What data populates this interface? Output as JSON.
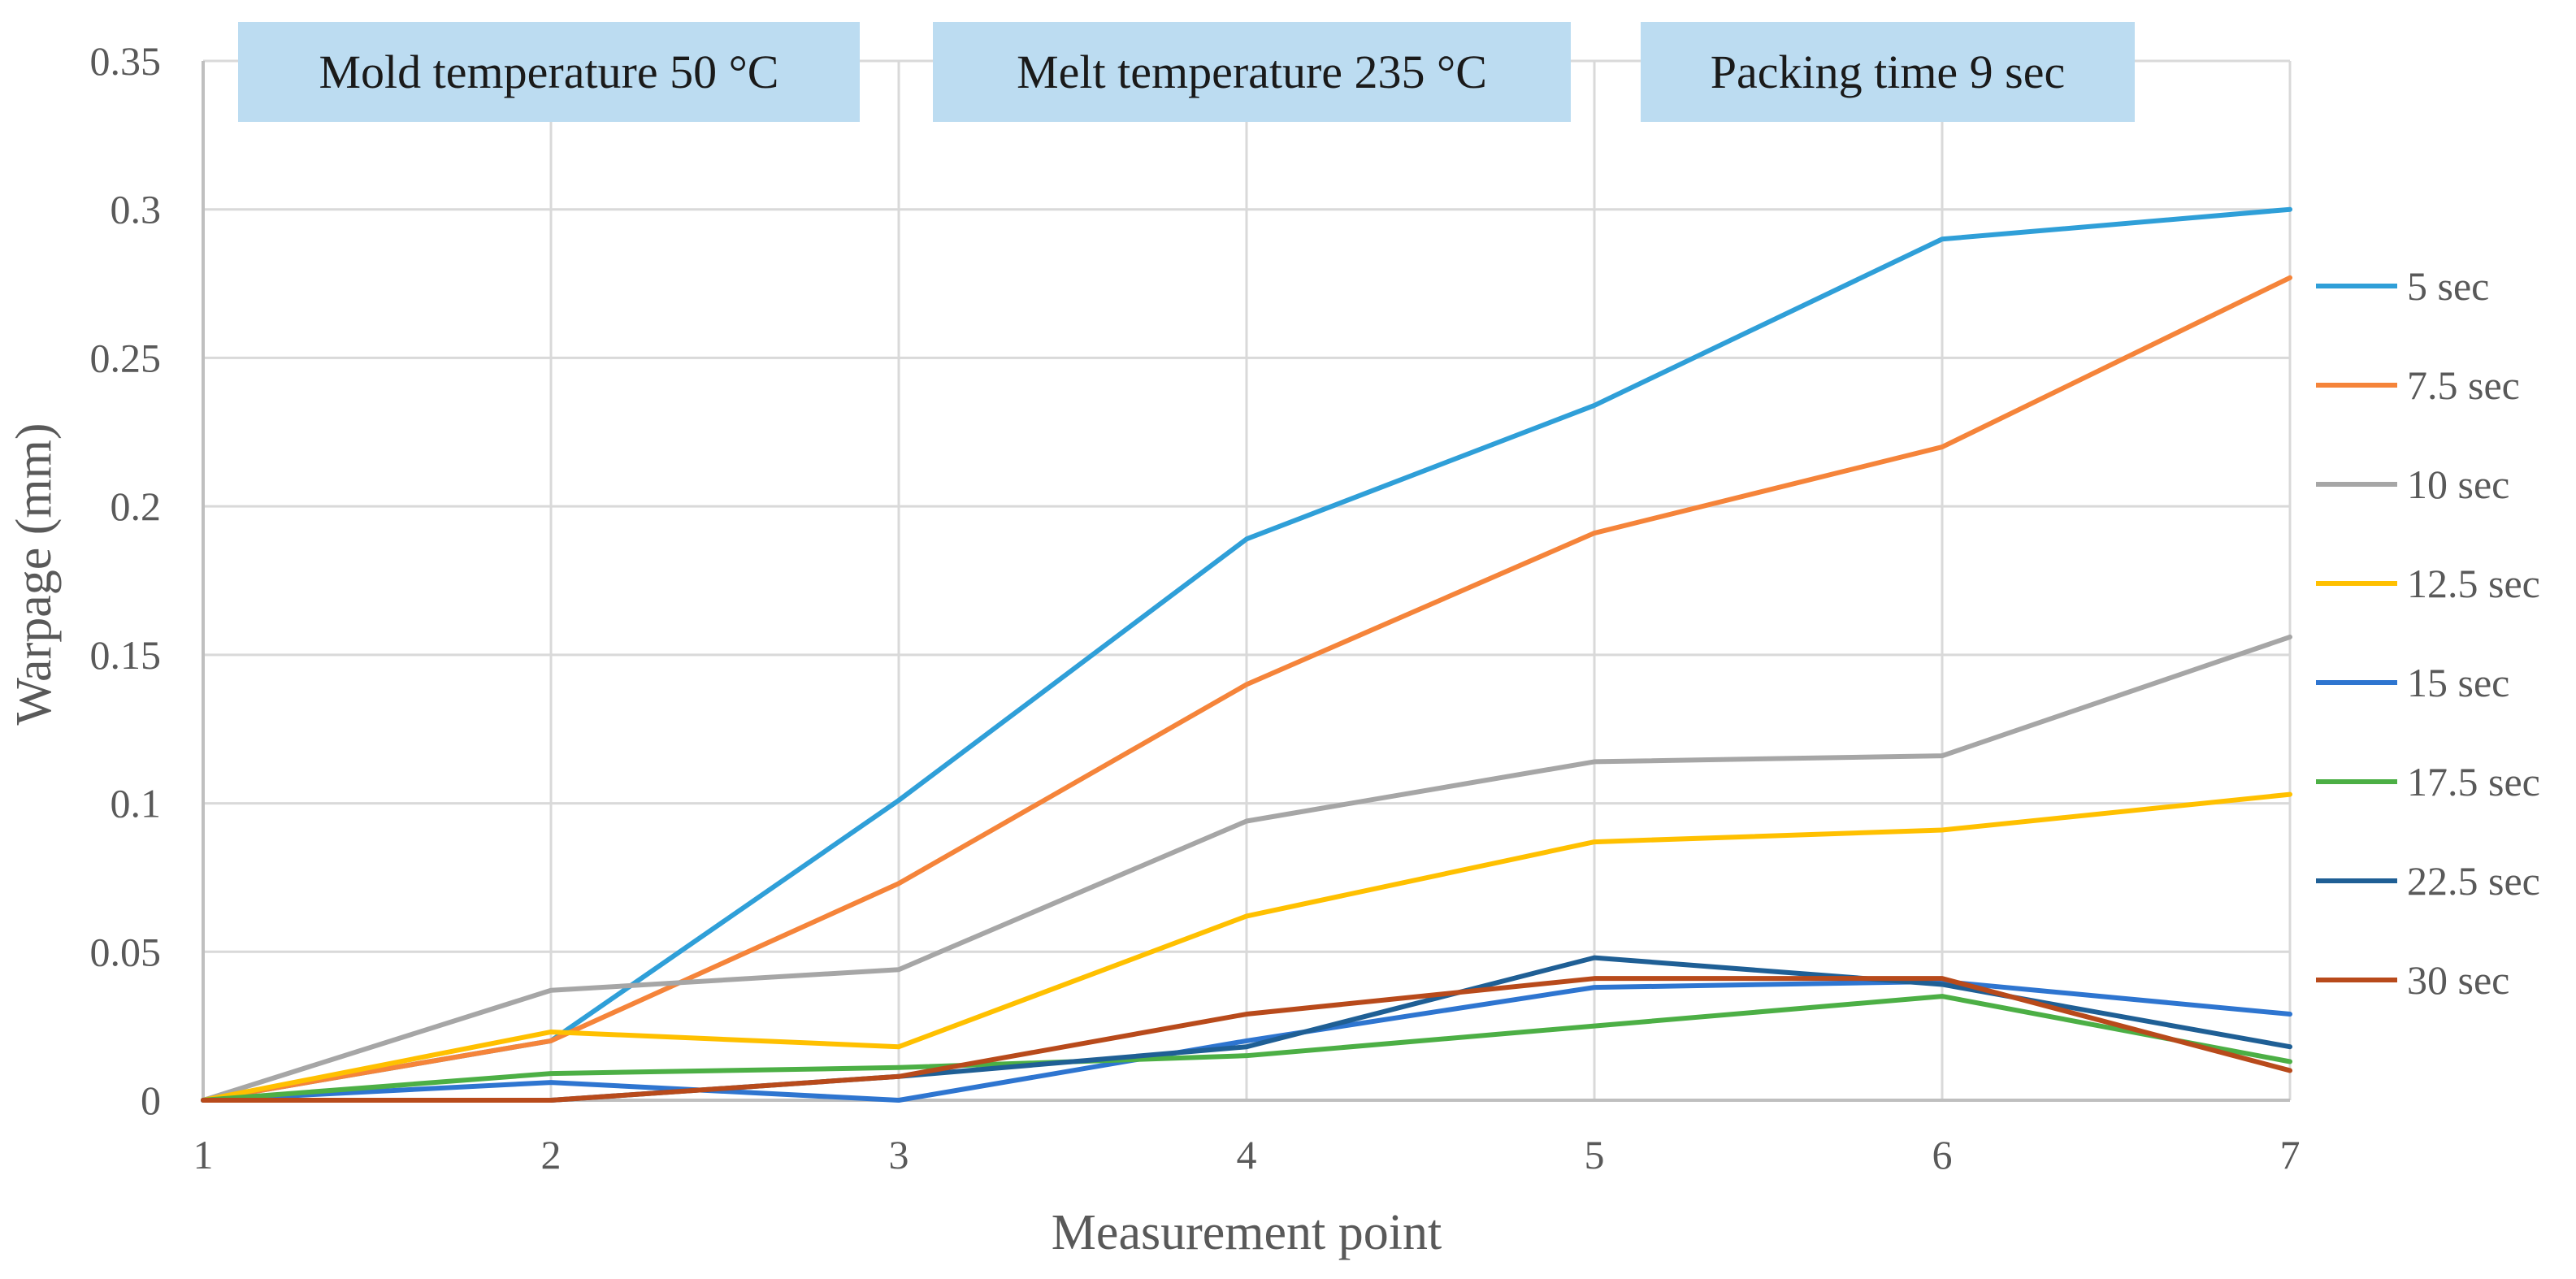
{
  "chart_data": {
    "type": "line",
    "title": "",
    "xlabel": "Measurement point",
    "ylabel": "Warpage (mm)",
    "x": [
      1,
      2,
      3,
      4,
      5,
      6,
      7
    ],
    "x_tick_labels": [
      "1",
      "2",
      "3",
      "4",
      "5",
      "6",
      "7"
    ],
    "xlim": [
      1,
      7
    ],
    "ylim": [
      0,
      0.35
    ],
    "y_ticks": [
      0,
      0.05,
      0.1,
      0.15,
      0.2,
      0.25,
      0.3,
      0.35
    ],
    "y_tick_labels": [
      "0",
      "0.05",
      "0.1",
      "0.15",
      "0.2",
      "0.25",
      "0.3",
      "0.35"
    ],
    "grid": true,
    "legend_position": "right",
    "annotations": [
      "Mold temperature  50 °C",
      "Melt temperature  235 °C",
      "Packing  time 9 sec"
    ],
    "series": [
      {
        "name": "5 sec",
        "color": "#2f9fd8",
        "values": [
          0,
          0.02,
          0.101,
          0.189,
          0.234,
          0.29,
          0.3
        ]
      },
      {
        "name": "7.5 sec",
        "color": "#f5843a",
        "values": [
          0,
          0.02,
          0.073,
          0.14,
          0.191,
          0.22,
          0.277
        ]
      },
      {
        "name": "10 sec",
        "color": "#a6a6a6",
        "values": [
          0,
          0.037,
          0.044,
          0.094,
          0.114,
          0.116,
          0.156
        ]
      },
      {
        "name": "12.5 sec",
        "color": "#ffc000",
        "values": [
          0,
          0.023,
          0.018,
          0.062,
          0.087,
          0.091,
          0.103
        ]
      },
      {
        "name": "15 sec",
        "color": "#2e75d0",
        "values": [
          0,
          0.006,
          0.0,
          0.02,
          0.038,
          0.04,
          0.029
        ]
      },
      {
        "name": "17.5 sec",
        "color": "#4caf45",
        "values": [
          0,
          0.009,
          0.011,
          0.015,
          0.025,
          0.035,
          0.013
        ]
      },
      {
        "name": "22.5 sec",
        "color": "#1f5f95",
        "values": [
          0,
          0.0,
          0.008,
          0.018,
          0.048,
          0.039,
          0.018
        ]
      },
      {
        "name": "30 sec",
        "color": "#b84a1b",
        "values": [
          0,
          0.0,
          0.008,
          0.029,
          0.041,
          0.041,
          0.01
        ]
      }
    ]
  },
  "colors": {
    "grid": "#d9d9d9",
    "axis": "#bfbfbf",
    "annotation_fill": "#bcdcf1"
  }
}
